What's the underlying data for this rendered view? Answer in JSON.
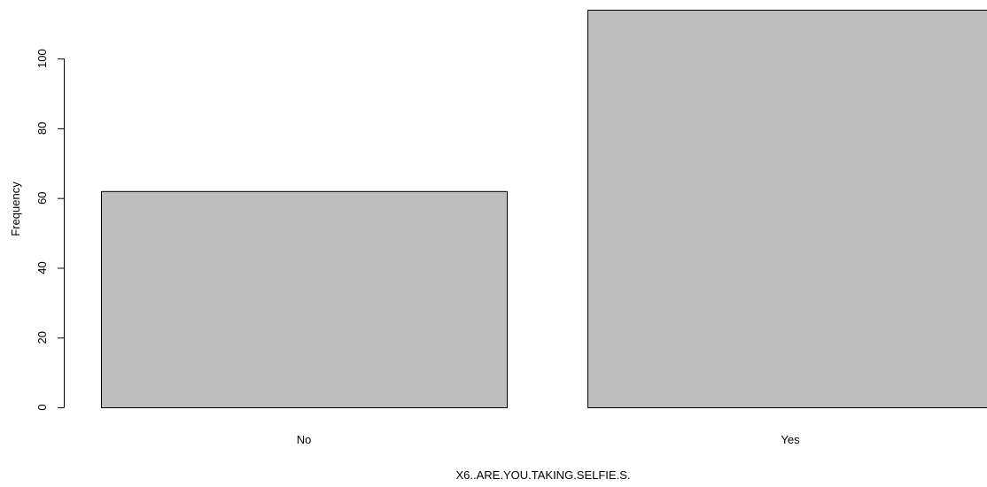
{
  "chart_data": {
    "type": "bar",
    "title": "",
    "categories": [
      "No",
      "Yes"
    ],
    "values": [
      62,
      114
    ],
    "xlabel": "X6..ARE.YOU.TAKING.SELFIE.S.",
    "ylabel": "Frequency",
    "ylim": [
      0,
      114
    ],
    "yticks": [
      "0",
      "20",
      "40",
      "60",
      "80",
      "100"
    ],
    "grid": false,
    "legend": "none",
    "colors": {
      "bar_fill": "#bebebe",
      "bar_stroke": "#000000",
      "axis": "#000000",
      "background": "#ffffff"
    }
  }
}
